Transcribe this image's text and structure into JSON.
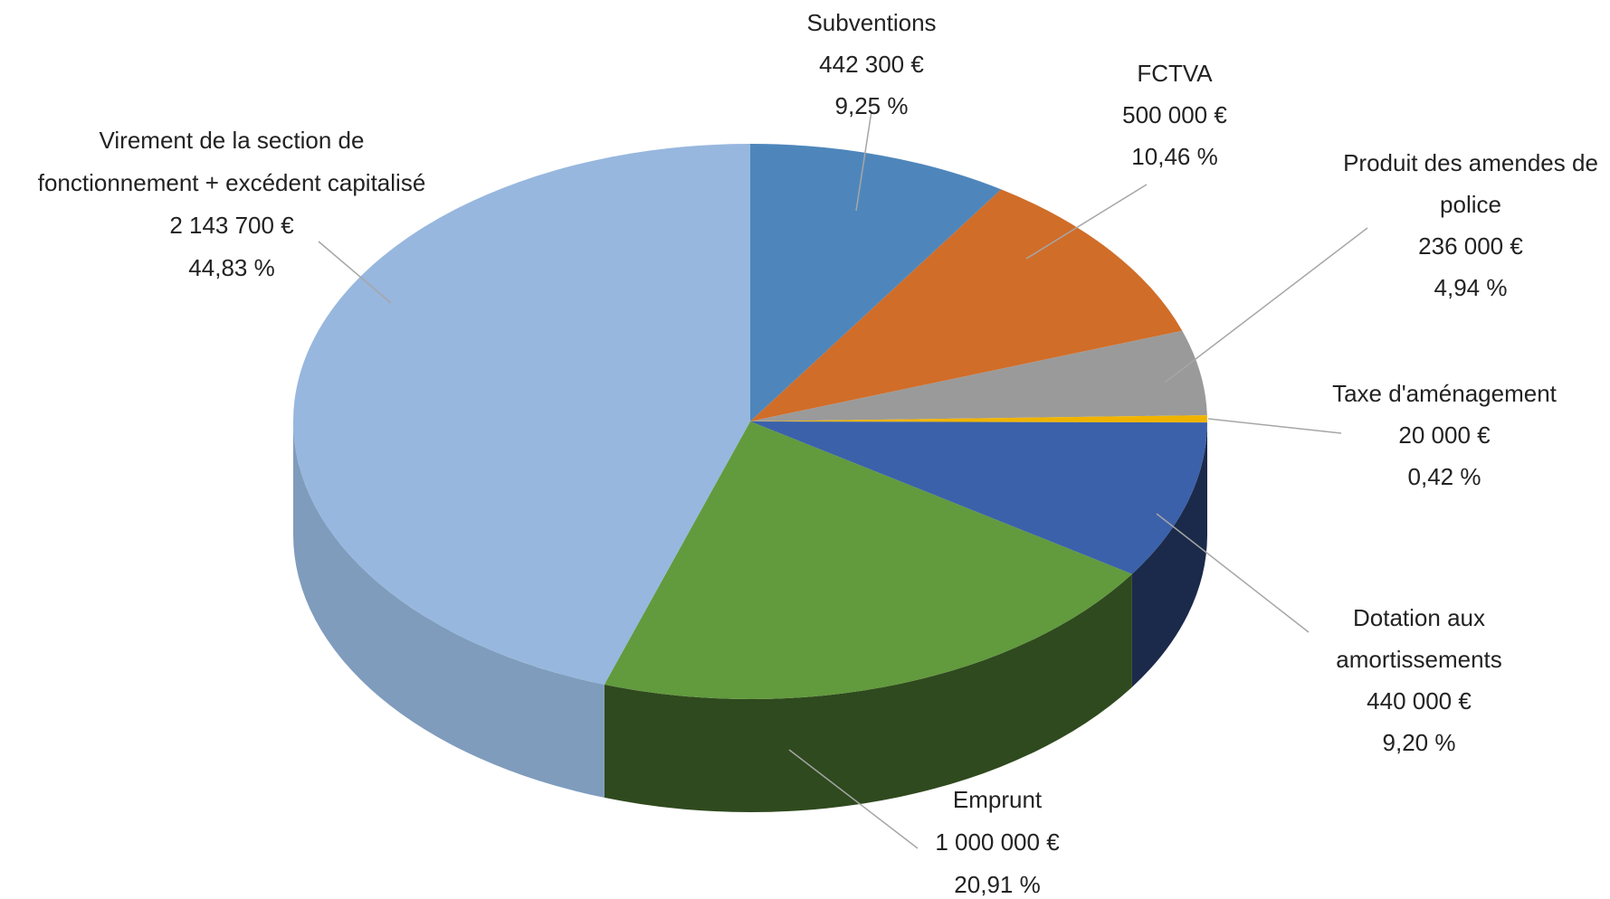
{
  "chart_data": {
    "type": "pie",
    "categories": [
      "Subventions",
      "FCTVA",
      "Produit des amendes de\npolice",
      "Taxe d'aménagement",
      "Dotation aux\namortissements",
      "Emprunt",
      "Virement de la section de\nfonctionnement + excédent capitalisé"
    ],
    "values": [
      442300,
      500000,
      236000,
      20000,
      440000,
      1000000,
      2143700
    ],
    "value_labels": [
      "442 300 €",
      "500 000 €",
      "236 000 €",
      "20 000 €",
      "440 000 €",
      "1 000 000 €",
      "2 143 700 €"
    ],
    "percent_labels": [
      "9,25 %",
      "10,46 %",
      "4,94 %",
      "0,42 %",
      "9,20 %",
      "20,91 %",
      "44,83 %"
    ],
    "colors": [
      "#4e86bb",
      "#d06d29",
      "#9a9a9a",
      "#f0b400",
      "#3b61aa",
      "#629a3e",
      "#97b7de"
    ],
    "side_colors": [
      "#2f5478",
      "#86461b",
      "#606060",
      "#9a7400",
      "#1b2a4a",
      "#2f4a1e",
      "#7f9cbd"
    ]
  }
}
